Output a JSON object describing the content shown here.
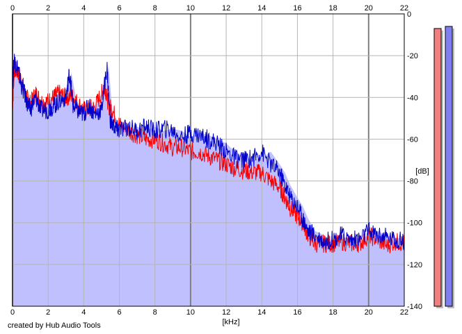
{
  "chart_data": {
    "type": "area",
    "xlabel": "[kHz]",
    "ylabel": "[dB]",
    "xlim": [
      0,
      22
    ],
    "ylim": [
      -140,
      0
    ],
    "x_ticks": [
      0,
      2,
      4,
      6,
      8,
      10,
      12,
      14,
      16,
      18,
      20,
      22
    ],
    "y_ticks": [
      0,
      -20,
      -40,
      -60,
      -80,
      -100,
      -120,
      -140
    ],
    "y_tick_labels": [
      "0",
      "-20",
      "-40",
      "-60",
      "-80",
      "-100",
      "-120",
      "-140"
    ],
    "x_tick_labels": [
      "0",
      "2",
      "4",
      "6",
      "8",
      "10",
      "12",
      "14",
      "16",
      "18",
      "20",
      "22"
    ],
    "grid": true,
    "series": [
      {
        "color": "#ff0000",
        "points": [
          [
            0,
            -44
          ],
          [
            0.1,
            -26
          ],
          [
            0.3,
            -28
          ],
          [
            0.5,
            -32
          ],
          [
            0.8,
            -40
          ],
          [
            1.0,
            -43
          ],
          [
            1.3,
            -38
          ],
          [
            1.6,
            -42
          ],
          [
            2.0,
            -42
          ],
          [
            2.3,
            -40
          ],
          [
            2.6,
            -38
          ],
          [
            3.0,
            -40
          ],
          [
            3.3,
            -39
          ],
          [
            3.6,
            -42
          ],
          [
            4.0,
            -46
          ],
          [
            4.3,
            -45
          ],
          [
            4.6,
            -45
          ],
          [
            5.0,
            -38
          ],
          [
            5.2,
            -35
          ],
          [
            5.4,
            -44
          ],
          [
            5.6,
            -46
          ],
          [
            6.0,
            -53
          ],
          [
            6.5,
            -56
          ],
          [
            7.0,
            -58
          ],
          [
            7.5,
            -60
          ],
          [
            8.0,
            -60
          ],
          [
            8.5,
            -62
          ],
          [
            9.0,
            -64
          ],
          [
            9.5,
            -64
          ],
          [
            10.0,
            -66
          ],
          [
            10.5,
            -66
          ],
          [
            11.0,
            -68
          ],
          [
            11.5,
            -70
          ],
          [
            12.0,
            -72
          ],
          [
            12.5,
            -74
          ],
          [
            13.0,
            -75
          ],
          [
            13.5,
            -76
          ],
          [
            14.0,
            -76
          ],
          [
            14.5,
            -80
          ],
          [
            15.0,
            -83
          ],
          [
            15.3,
            -88
          ],
          [
            15.6,
            -93
          ],
          [
            16.0,
            -97
          ],
          [
            16.3,
            -100
          ],
          [
            16.6,
            -106
          ],
          [
            17.0,
            -110
          ],
          [
            17.5,
            -110
          ],
          [
            18.0,
            -110
          ],
          [
            18.5,
            -109
          ],
          [
            19.0,
            -110
          ],
          [
            19.5,
            -110
          ],
          [
            20.0,
            -106
          ],
          [
            20.5,
            -108
          ],
          [
            21.0,
            -111
          ],
          [
            21.5,
            -109
          ],
          [
            22.0,
            -110
          ]
        ]
      },
      {
        "color": "#0000cc",
        "points": [
          [
            0,
            -33
          ],
          [
            0.1,
            -22
          ],
          [
            0.3,
            -26
          ],
          [
            0.5,
            -34
          ],
          [
            0.8,
            -42
          ],
          [
            1.0,
            -46
          ],
          [
            1.3,
            -40
          ],
          [
            1.6,
            -46
          ],
          [
            2.0,
            -46
          ],
          [
            2.3,
            -44
          ],
          [
            2.6,
            -42
          ],
          [
            3.0,
            -40
          ],
          [
            3.2,
            -28
          ],
          [
            3.4,
            -44
          ],
          [
            3.7,
            -47
          ],
          [
            4.0,
            -48
          ],
          [
            4.3,
            -44
          ],
          [
            4.6,
            -48
          ],
          [
            5.0,
            -46
          ],
          [
            5.3,
            -25
          ],
          [
            5.5,
            -52
          ],
          [
            5.8,
            -55
          ],
          [
            6.0,
            -56
          ],
          [
            6.5,
            -54
          ],
          [
            7.0,
            -56
          ],
          [
            7.5,
            -54
          ],
          [
            8.0,
            -56
          ],
          [
            8.5,
            -55
          ],
          [
            9.0,
            -56
          ],
          [
            9.5,
            -59
          ],
          [
            10.0,
            -57
          ],
          [
            10.5,
            -58
          ],
          [
            11.0,
            -60
          ],
          [
            11.5,
            -62
          ],
          [
            12.0,
            -66
          ],
          [
            12.5,
            -69
          ],
          [
            13.0,
            -70
          ],
          [
            13.5,
            -69
          ],
          [
            14.0,
            -66
          ],
          [
            14.5,
            -72
          ],
          [
            15.0,
            -76
          ],
          [
            15.3,
            -82
          ],
          [
            15.6,
            -88
          ],
          [
            16.0,
            -92
          ],
          [
            16.3,
            -98
          ],
          [
            16.6,
            -104
          ],
          [
            17.0,
            -106
          ],
          [
            17.5,
            -109
          ],
          [
            18.0,
            -108
          ],
          [
            18.5,
            -106
          ],
          [
            19.0,
            -108
          ],
          [
            19.5,
            -108
          ],
          [
            20.0,
            -104
          ],
          [
            20.5,
            -106
          ],
          [
            21.0,
            -107
          ],
          [
            21.5,
            -108
          ],
          [
            22.0,
            -109
          ]
        ]
      }
    ],
    "fill_color": "#c0c0ff",
    "level_meters": [
      {
        "color": "#f08080",
        "level_db": -7
      },
      {
        "color": "#7f7ff0",
        "level_db": -6
      }
    ]
  },
  "footer": {
    "credit": "created by Hub Audio Tools"
  }
}
